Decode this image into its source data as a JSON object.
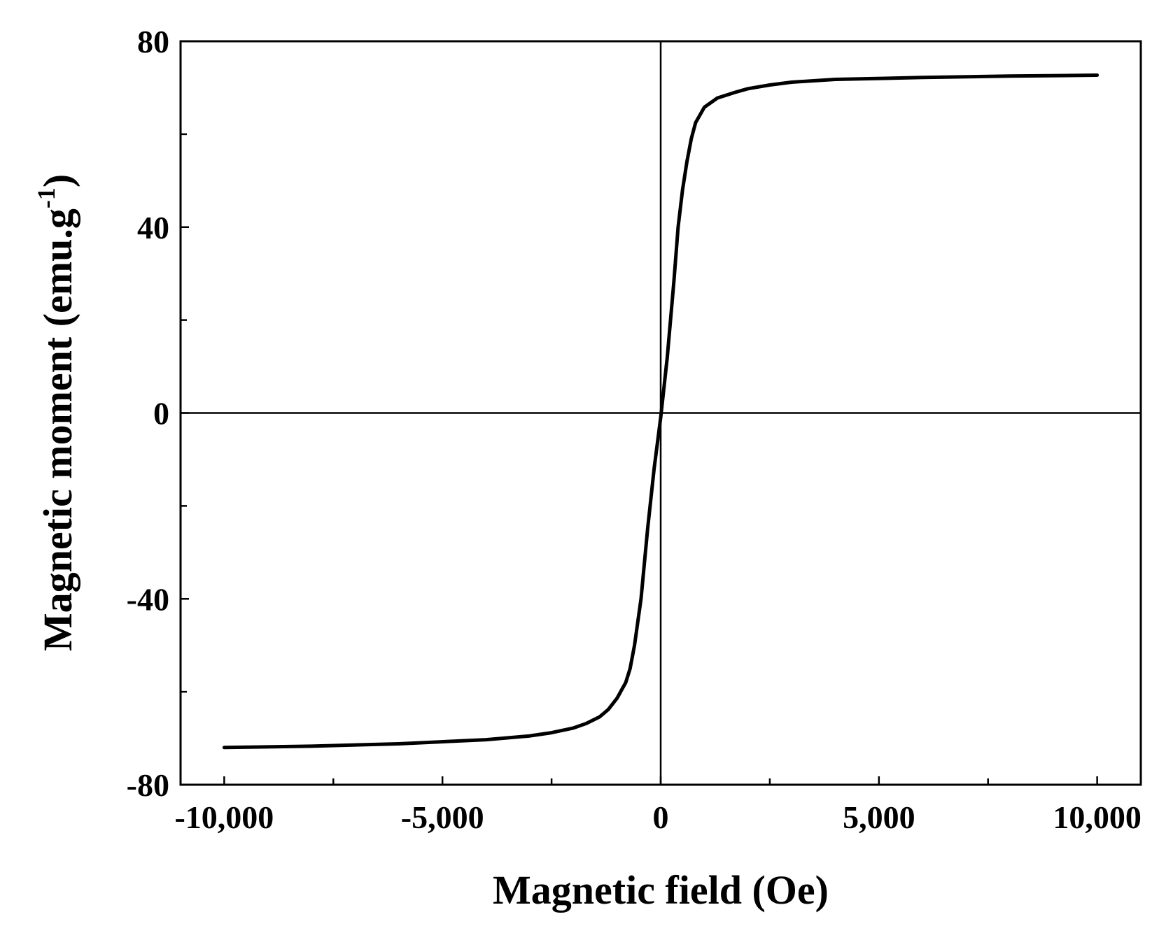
{
  "chart_data": {
    "type": "line",
    "xlabel": "Magnetic field (Oe)",
    "ylabel": "Magnetic moment (emu.g",
    "ylabel_superscript": "-1",
    "ylabel_close": ")",
    "xlim": [
      -11000,
      11000
    ],
    "ylim": [
      -80,
      80
    ],
    "x_major_ticks": [
      -10000,
      -5000,
      0,
      5000,
      10000
    ],
    "x_tick_labels": [
      "-10,000",
      "-5,000",
      "0",
      "5,000",
      "10,000"
    ],
    "x_minor_ticks": [
      -7500,
      -2500,
      2500,
      7500
    ],
    "y_major_ticks": [
      -80,
      -40,
      0,
      40,
      80
    ],
    "y_tick_labels": [
      "-80",
      "-40",
      "0",
      "40",
      "80"
    ],
    "y_minor_ticks": [
      -60,
      -20,
      20,
      60
    ],
    "zero_lines": true,
    "grid": false,
    "color": "#000000",
    "series": [
      {
        "x": [
          -10000,
          -8000,
          -6000,
          -4000,
          -3000,
          -2500,
          -2000,
          -1700,
          -1400,
          -1200,
          -1000,
          -800,
          -700,
          -600,
          -450,
          -300,
          -150,
          0,
          150,
          300,
          400,
          500,
          600,
          700,
          800,
          1000,
          1300,
          1700,
          2000,
          2500,
          3000,
          4000,
          6000,
          8000,
          10000
        ],
        "y": [
          -72,
          -71.7,
          -71.2,
          -70.3,
          -69.5,
          -68.8,
          -67.8,
          -66.8,
          -65.4,
          -63.8,
          -61.4,
          -58,
          -55,
          -50,
          -40,
          -25,
          -12,
          -1,
          12,
          28,
          40,
          48,
          54,
          59,
          62.5,
          65.8,
          67.8,
          69,
          69.8,
          70.6,
          71.2,
          71.8,
          72.2,
          72.5,
          72.7
        ]
      }
    ]
  }
}
